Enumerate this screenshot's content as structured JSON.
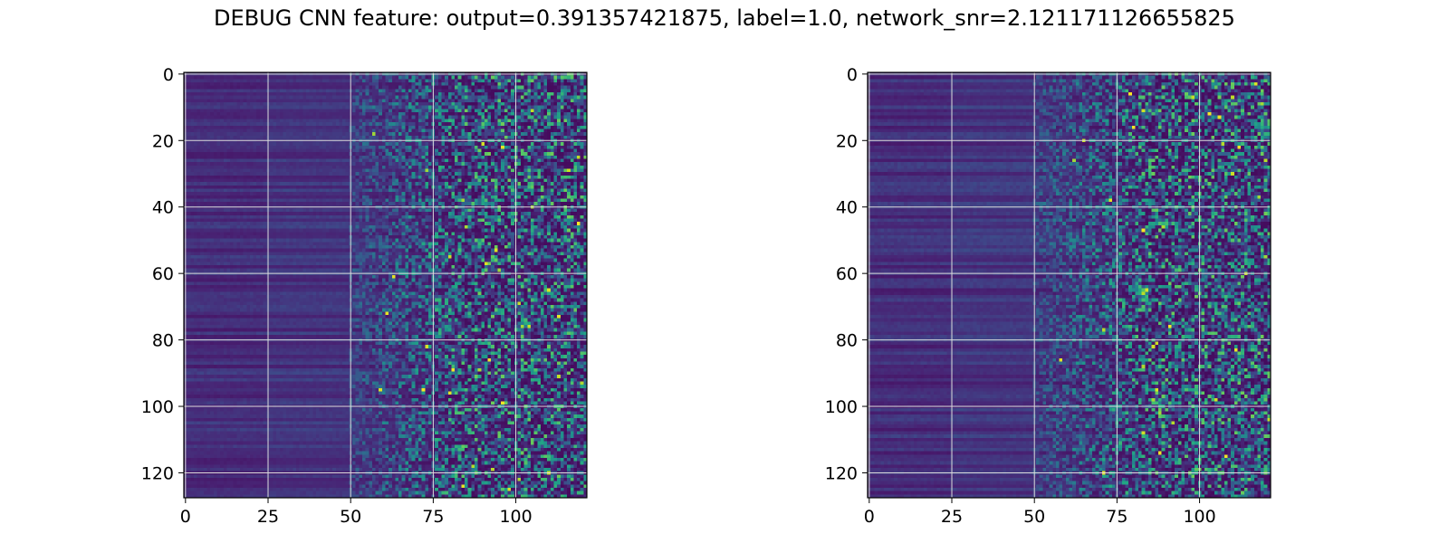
{
  "figure": {
    "title": "DEBUG CNN feature: output=0.391357421875, label=1.0, network_snr=2.121171126655825"
  },
  "chart_data": [
    {
      "type": "heatmap",
      "title": "",
      "xlabel": "",
      "ylabel": "",
      "xlim": [
        -0.5,
        121.5
      ],
      "ylim": [
        127.5,
        -0.5
      ],
      "rows": 128,
      "cols": 122,
      "colormap": "viridis",
      "grid": true,
      "grid_color": "#dcdcdc",
      "x_ticks": [
        0,
        25,
        50,
        75,
        100
      ],
      "x_tick_labels": [
        "0",
        "25",
        "50",
        "75",
        "100"
      ],
      "y_ticks": [
        0,
        20,
        40,
        60,
        80,
        100,
        120
      ],
      "y_tick_labels": [
        "0",
        "20",
        "40",
        "60",
        "80",
        "100",
        "120"
      ],
      "seed": 17
    },
    {
      "type": "heatmap",
      "title": "",
      "xlabel": "",
      "ylabel": "",
      "xlim": [
        -0.5,
        121.5
      ],
      "ylim": [
        127.5,
        -0.5
      ],
      "rows": 128,
      "cols": 122,
      "colormap": "viridis",
      "grid": true,
      "grid_color": "#dcdcdc",
      "x_ticks": [
        0,
        25,
        50,
        75,
        100
      ],
      "x_tick_labels": [
        "0",
        "25",
        "50",
        "75",
        "100"
      ],
      "y_ticks": [
        0,
        20,
        40,
        60,
        80,
        100,
        120
      ],
      "y_tick_labels": [
        "0",
        "20",
        "40",
        "60",
        "80",
        "100",
        "120"
      ],
      "seed": 91
    }
  ]
}
